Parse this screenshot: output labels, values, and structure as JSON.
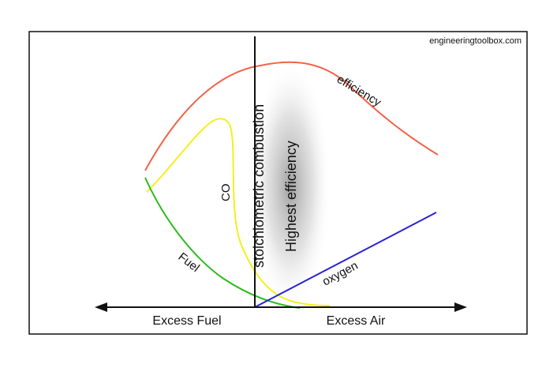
{
  "source": "engineeringtoolbox.com",
  "labels": {
    "efficiency": "efficiency",
    "co": "CO",
    "fuel": "Fuel",
    "oxygen": "oxygen",
    "stoichiometric": "stoichiometric combustion",
    "highest_efficiency": "Highest efficiency",
    "excess_fuel": "Excess Fuel",
    "excess_air": "Excess Air"
  },
  "colors": {
    "efficiency": "#f2624b",
    "co": "#f4ef1e",
    "fuel": "#2dbb1f",
    "oxygen": "#2a22d6",
    "axis": "#111111",
    "frame": "#111111"
  }
}
